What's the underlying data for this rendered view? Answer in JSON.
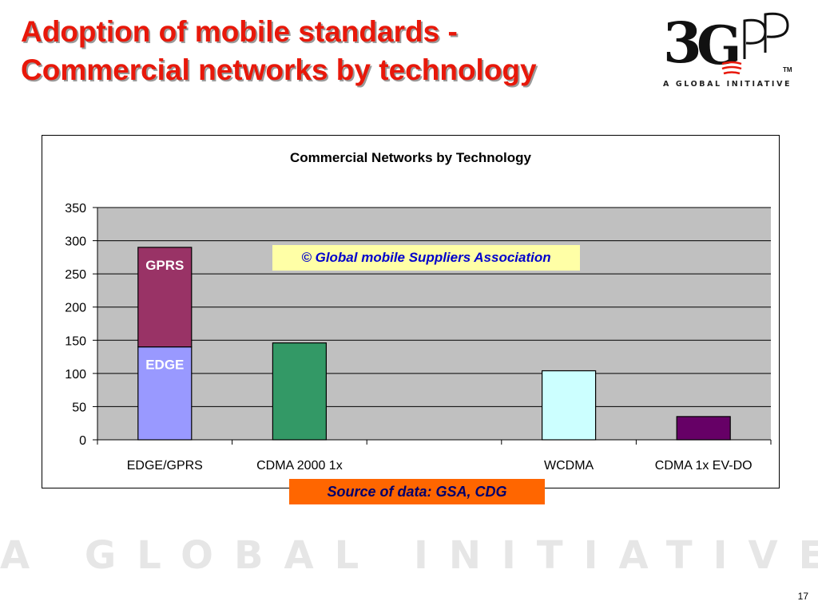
{
  "slide": {
    "title_line1": "Adoption of mobile standards -",
    "title_line2": "Commercial networks by technology",
    "logo_text": "3GPP",
    "logo_tagline": "A GLOBAL INITIATIVE",
    "trademark": "TM",
    "watermark": "A GLOBAL INITIATIVE",
    "page_number": "17",
    "source_banner": "Source of data: GSA, CDG",
    "copyright_note": "© Global mobile Suppliers Association"
  },
  "colors": {
    "title_red": "#e8180a",
    "plot_background": "#c0c0c0",
    "annotation_yellow": "#ffffa6",
    "banner_orange": "#ff6600"
  },
  "chart_data": {
    "type": "bar",
    "stacked": true,
    "title": "Commercial Networks by Technology",
    "xlabel": "",
    "ylabel": "",
    "ylim": [
      0,
      350
    ],
    "yticks": [
      0,
      50,
      100,
      150,
      200,
      250,
      300,
      350
    ],
    "grid": true,
    "categories": [
      "EDGE/GPRS",
      "CDMA 2000 1x",
      "",
      "WCDMA",
      "CDMA 1x EV-DO"
    ],
    "series": [
      {
        "name": "EDGE",
        "label": "EDGE",
        "color": "#9999ff",
        "values": [
          140,
          null,
          null,
          null,
          null
        ]
      },
      {
        "name": "GPRS",
        "label": "GPRS",
        "color": "#993366",
        "values": [
          150,
          null,
          null,
          null,
          null
        ]
      },
      {
        "color": "#339966",
        "values": [
          null,
          146,
          null,
          null,
          null
        ]
      },
      {
        "color": "#ccffff",
        "values": [
          null,
          null,
          null,
          104,
          null
        ]
      },
      {
        "color": "#660066",
        "values": [
          null,
          null,
          null,
          null,
          35
        ]
      }
    ]
  }
}
